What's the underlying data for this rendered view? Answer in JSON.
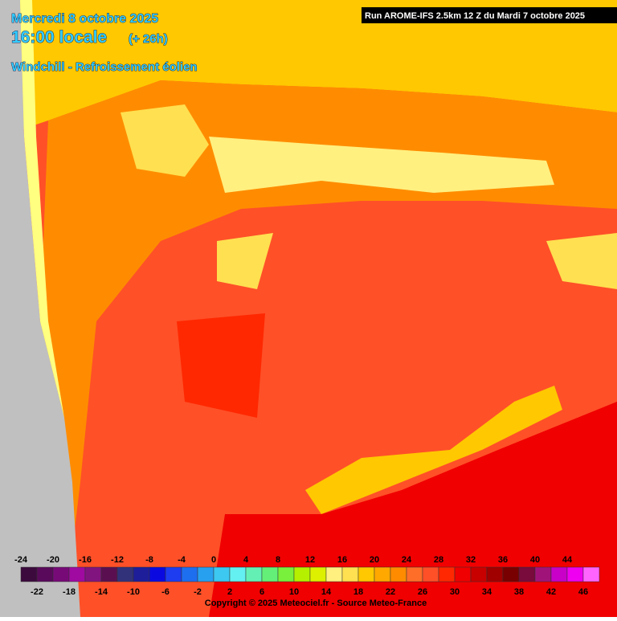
{
  "header": {
    "date": "Mercredi 8 octobre 2025",
    "time": "16:00 locale",
    "lead": "(+ 26h)",
    "title": "Windchill - Refroissement éolien",
    "run": "Run AROME-IFS 2.5km 12 Z du Mardi 7 octobre 2025"
  },
  "legend": {
    "labels": [
      -24,
      -22,
      -20,
      -18,
      -16,
      -14,
      -12,
      -10,
      -8,
      -6,
      -4,
      -2,
      0,
      2,
      4,
      6,
      8,
      10,
      12,
      14,
      16,
      18,
      20,
      22,
      24,
      26,
      28,
      30,
      32,
      34,
      36,
      38,
      40,
      42,
      44,
      46
    ],
    "colors": [
      "#3c0a3c",
      "#5a0a5a",
      "#780a78",
      "#a00aa0",
      "#82147f",
      "#5a1050",
      "#32327a",
      "#1e1e9a",
      "#0a0ae0",
      "#1e3cf0",
      "#1e6ef0",
      "#28a0f0",
      "#3cc8f0",
      "#64f0f0",
      "#64f0b4",
      "#64f078",
      "#78f03c",
      "#b4f000",
      "#dcf000",
      "#fff080",
      "#ffe050",
      "#ffc800",
      "#ffa800",
      "#ff8c00",
      "#ff6e28",
      "#ff5028",
      "#ff2800",
      "#f00000",
      "#c80000",
      "#a00000",
      "#780000",
      "#780a3c",
      "#a0147a",
      "#c800c8",
      "#f000f0",
      "#ff64ff"
    ]
  },
  "footer": {
    "copyright": "Copyright © 2025 Meteociel.fr - Source Meteo-France"
  }
}
